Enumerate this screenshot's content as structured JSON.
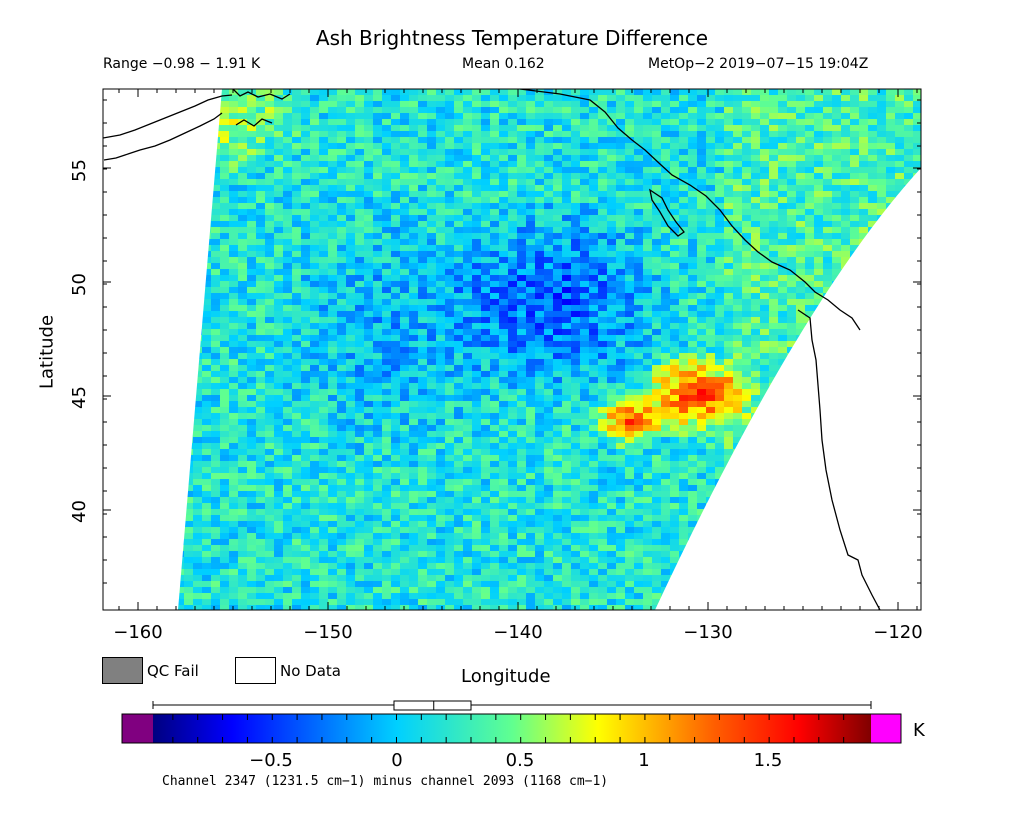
{
  "title": "Ash Brightness Temperature Difference",
  "stats": {
    "range": "Range −0.98 − 1.91 K",
    "mean": "Mean 0.162",
    "satellite_time": "MetOp−2 2019−07−15 19:04Z"
  },
  "axes": {
    "xlabel": "Longitude",
    "ylabel": "Latitude",
    "x_ticks": [
      "−160",
      "−150",
      "−140",
      "−130",
      "−120"
    ],
    "y_ticks": [
      "55",
      "50",
      "45",
      "40"
    ],
    "x_range": [
      -162,
      -119
    ],
    "y_range": [
      35.5,
      58.3
    ]
  },
  "legend": {
    "qc_fail": "QC Fail",
    "no_data": "No Data",
    "qc_fail_color": "#808080",
    "no_data_color": "#ffffff"
  },
  "colorbar": {
    "unit": "K",
    "ticks": [
      "−0.5",
      "0",
      "0.5",
      "1",
      "1.5"
    ],
    "range": [
      -0.98,
      1.91
    ],
    "under_color": "#800080",
    "over_color": "#ff00ff",
    "boxplot": {
      "min": -0.98,
      "q1": -0.01,
      "median": 0.15,
      "q3": 0.3,
      "max": 1.91
    }
  },
  "footnote": "Channel 2347 (1231.5 cm−1) minus channel 2093 (1168 cm−1)"
}
